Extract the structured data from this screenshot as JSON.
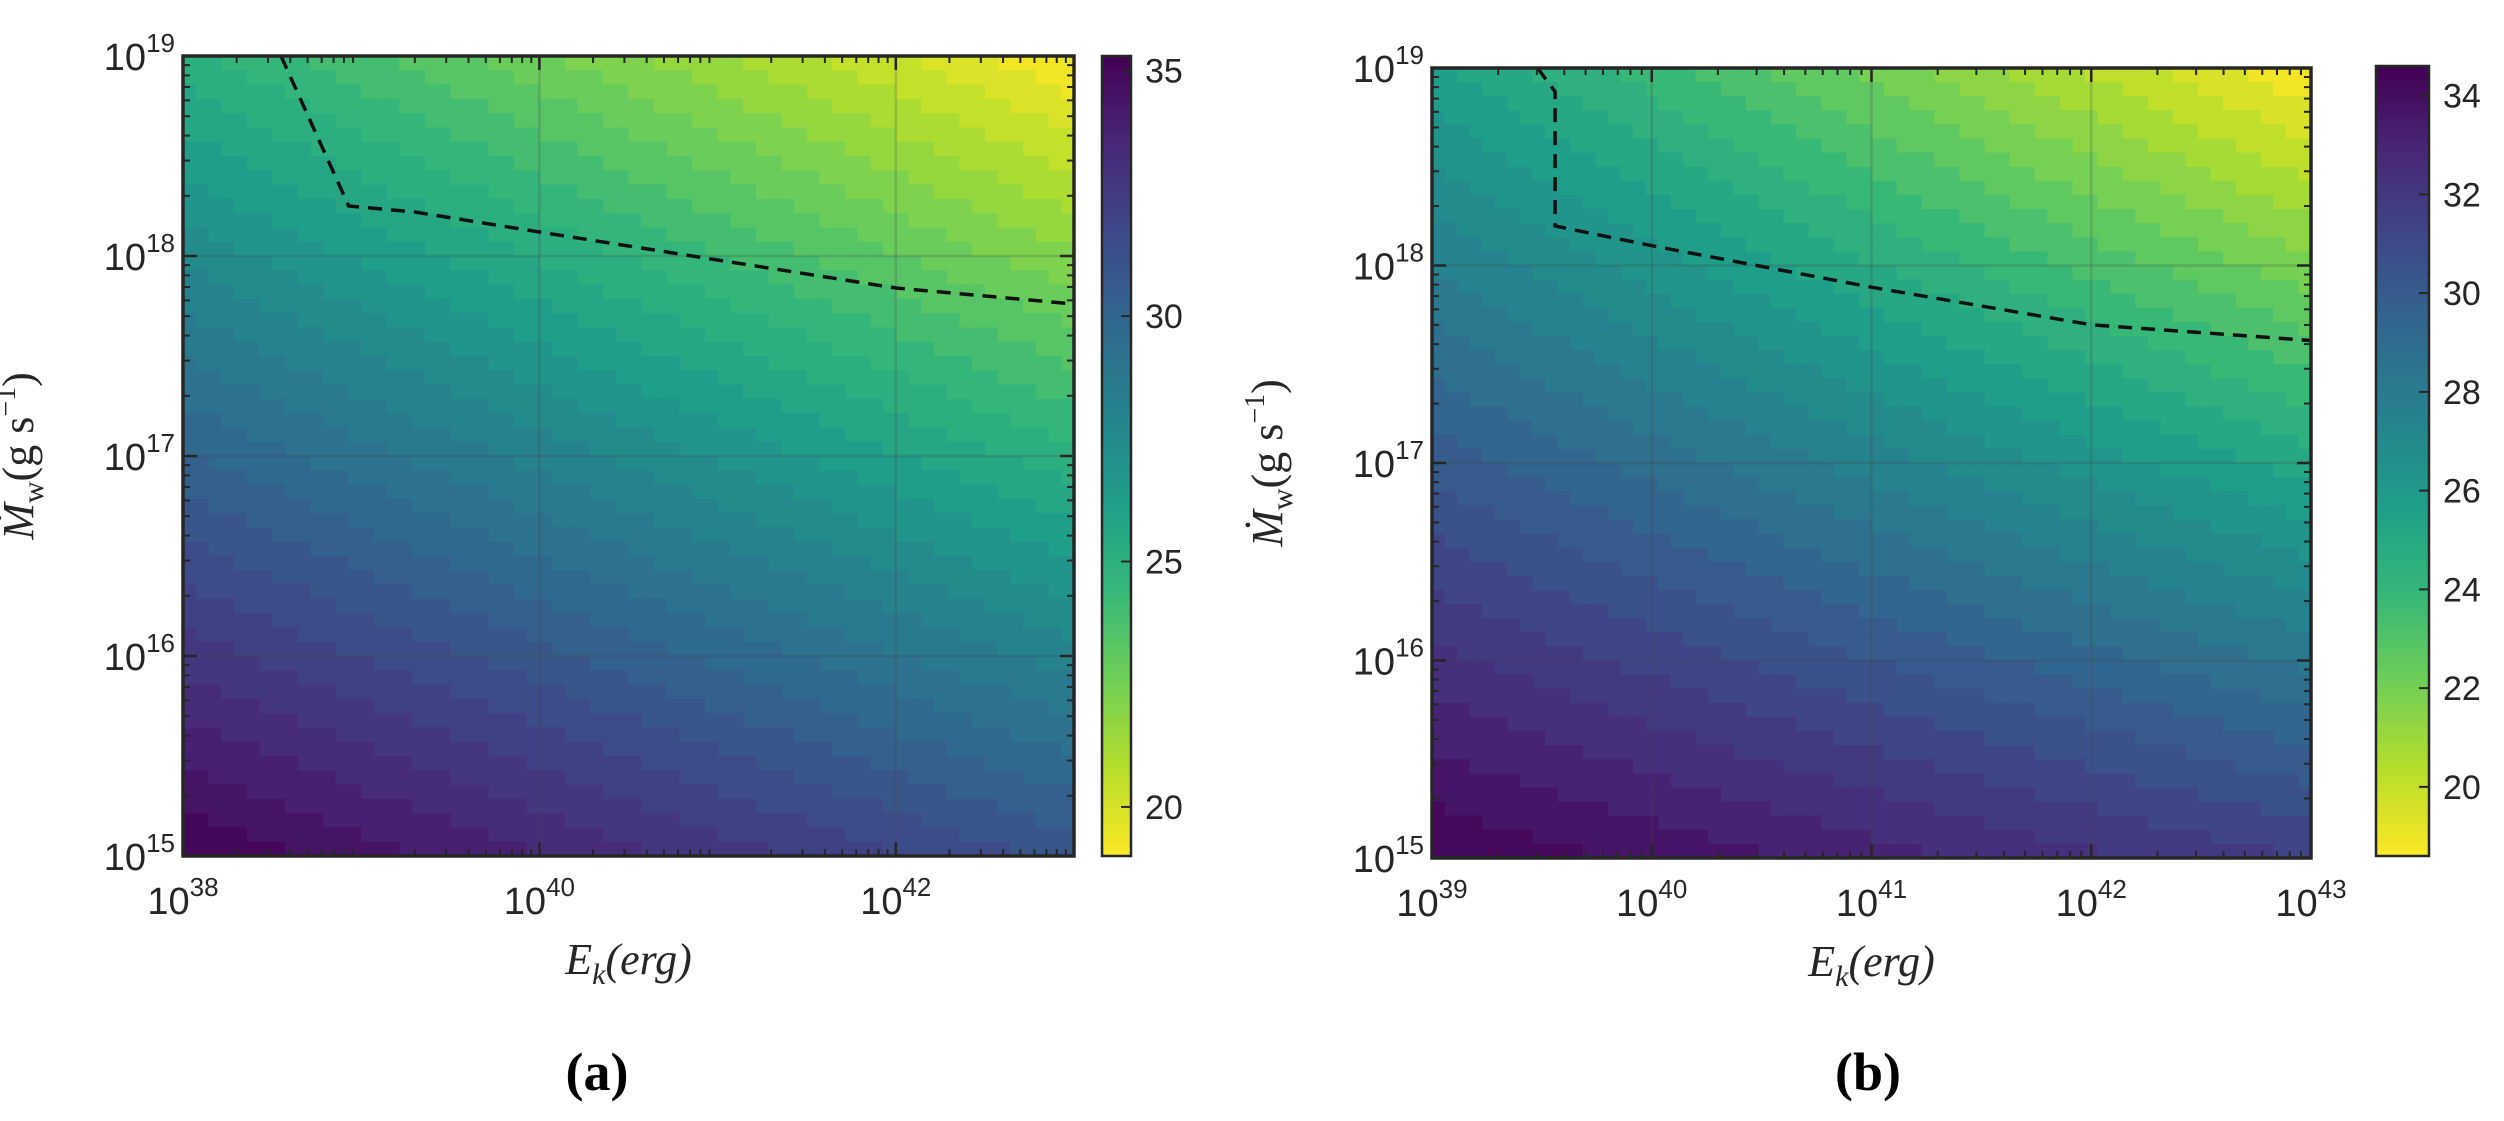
{
  "chart_data": [
    {
      "type": "heatmap",
      "subtype": "filled-contour",
      "panel_label": "(a)",
      "xlabel": "E_k(erg)",
      "ylabel": "Ṁ_w(g s^-1)",
      "x_scale": "log",
      "y_scale": "log",
      "xlim_log10": [
        38,
        43
      ],
      "ylim_log10": [
        15,
        19
      ],
      "x_ticks": [
        {
          "exp": 38,
          "label": "10",
          "sup": "38"
        },
        {
          "exp": 40,
          "label": "10",
          "sup": "40"
        },
        {
          "exp": 42,
          "label": "10",
          "sup": "42"
        }
      ],
      "y_ticks": [
        {
          "exp": 15,
          "label": "10",
          "sup": "15"
        },
        {
          "exp": 16,
          "label": "10",
          "sup": "16"
        },
        {
          "exp": 17,
          "label": "10",
          "sup": "17"
        },
        {
          "exp": 18,
          "label": "10",
          "sup": "18"
        },
        {
          "exp": 19,
          "label": "10",
          "sup": "19"
        }
      ],
      "grid": true,
      "colormap": "viridis (reversed: high values dark purple, low values yellow)",
      "colorbar": {
        "min": 19,
        "max": 35.3,
        "ticks": [
          20,
          25,
          30,
          35
        ],
        "placement": "right"
      },
      "field_corners": {
        "x38_y15": 35.3,
        "x43_y15": 31.0,
        "x38_y19": 25.0,
        "x43_y19": 19.0
      },
      "contour_levels": 28,
      "dashed_contour": [
        [
          38.55,
          19.0
        ],
        [
          38.93,
          18.25
        ],
        [
          39.3,
          18.22
        ],
        [
          40.0,
          18.12
        ],
        [
          41.0,
          17.98
        ],
        [
          42.0,
          17.84
        ],
        [
          43.0,
          17.76
        ]
      ]
    },
    {
      "type": "heatmap",
      "subtype": "filled-contour",
      "panel_label": "(b)",
      "xlabel": "E_k(erg)",
      "ylabel": "Ṁ_w(g s^-1)",
      "x_scale": "log",
      "y_scale": "log",
      "xlim_log10": [
        39,
        43
      ],
      "ylim_log10": [
        15,
        19
      ],
      "x_ticks": [
        {
          "exp": 39,
          "label": "10",
          "sup": "39"
        },
        {
          "exp": 40,
          "label": "10",
          "sup": "40"
        },
        {
          "exp": 41,
          "label": "10",
          "sup": "41"
        },
        {
          "exp": 42,
          "label": "10",
          "sup": "42"
        },
        {
          "exp": 43,
          "label": "10",
          "sup": "43"
        }
      ],
      "y_ticks": [
        {
          "exp": 15,
          "label": "10",
          "sup": "15"
        },
        {
          "exp": 16,
          "label": "10",
          "sup": "16"
        },
        {
          "exp": 17,
          "label": "10",
          "sup": "17"
        },
        {
          "exp": 18,
          "label": "10",
          "sup": "18"
        },
        {
          "exp": 19,
          "label": "10",
          "sup": "19"
        }
      ],
      "grid": true,
      "colormap": "viridis (reversed: high values dark purple, low values yellow)",
      "colorbar": {
        "min": 18.6,
        "max": 34.6,
        "ticks": [
          20,
          22,
          24,
          26,
          28,
          30,
          32,
          34
        ],
        "placement": "right"
      },
      "field_corners": {
        "x39_y15": 34.6,
        "x43_y15": 31.5,
        "x39_y19": 25.5,
        "x43_y19": 18.6
      },
      "contour_levels": 26,
      "dashed_contour": [
        [
          39.48,
          19.0
        ],
        [
          39.56,
          18.88
        ],
        [
          39.56,
          18.2
        ],
        [
          40.0,
          18.1
        ],
        [
          41.0,
          17.89
        ],
        [
          42.0,
          17.7
        ],
        [
          43.0,
          17.62
        ]
      ]
    }
  ]
}
